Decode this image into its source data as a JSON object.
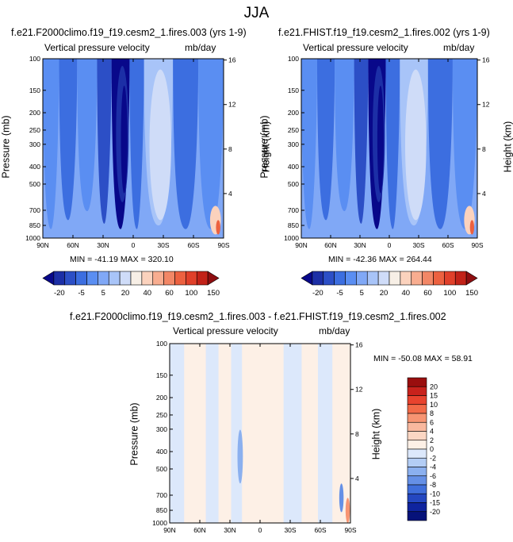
{
  "figure_title": "JJA",
  "panels": [
    {
      "title": "f.e21.F2000climo.f19_f19.cesm2_1.fires.003 (yrs 1-9)",
      "variable": "Vertical pressure velocity",
      "units": "mb/day",
      "y_label": "Pressure (mb)",
      "y2_label": "Height (km)",
      "stats": "MIN = -41.19  MAX = 320.10"
    },
    {
      "title": "f.e21.FHIST.f19_f19.cesm2_1.fires.002 (yrs 1-9)",
      "variable": "Vertical pressure velocity",
      "units": "mb/day",
      "y_label": "Pressure (mb)",
      "y2_label": "Height (km)",
      "stats": "MIN = -42.36  MAX = 264.44"
    },
    {
      "title": "f.e21.F2000climo.f19_f19.cesm2_1.fires.003 - f.e21.FHIST.f19_f19.cesm2_1.fires.002",
      "variable": "Vertical pressure velocity",
      "units": "mb/day",
      "y_label": "Pressure (mb)",
      "y2_label": "Height (km)",
      "stats": "MIN = -50.08  MAX =  58.91"
    }
  ],
  "chart_data": [
    {
      "type": "heatmap",
      "title": "f.e21.F2000climo.f19_f19.cesm2_1.fires.003 (yrs 1-9)",
      "xlabel": "",
      "ylabel": "Pressure (mb)",
      "y2label": "Height (km)",
      "x_ticks": [
        "90N",
        "60N",
        "30N",
        "0",
        "30S",
        "60S",
        "90S"
      ],
      "y_ticks": [
        "100",
        "150",
        "200",
        "250",
        "300",
        "400",
        "500",
        "700",
        "850",
        "1000"
      ],
      "y2_ticks": [
        "16",
        "12",
        "8",
        "4"
      ],
      "min": -41.19,
      "max": 320.1
    },
    {
      "type": "heatmap",
      "title": "f.e21.FHIST.f19_f19.cesm2_1.fires.002 (yrs 1-9)",
      "xlabel": "",
      "ylabel": "Pressure (mb)",
      "y2label": "Height (km)",
      "x_ticks": [
        "90N",
        "60N",
        "30N",
        "0",
        "30S",
        "60S",
        "90S"
      ],
      "y_ticks": [
        "100",
        "150",
        "200",
        "250",
        "300",
        "400",
        "500",
        "700",
        "850",
        "1000"
      ],
      "y2_ticks": [
        "16",
        "12",
        "8",
        "4"
      ],
      "min": -42.36,
      "max": 264.44
    },
    {
      "type": "heatmap",
      "title": "f.e21.F2000climo.f19_f19.cesm2_1.fires.003 - f.e21.FHIST.f19_f19.cesm2_1.fires.002",
      "xlabel": "",
      "ylabel": "Pressure (mb)",
      "y2label": "Height (km)",
      "x_ticks": [
        "90N",
        "60N",
        "30N",
        "0",
        "30S",
        "60S",
        "90S"
      ],
      "y_ticks": [
        "100",
        "150",
        "200",
        "250",
        "300",
        "400",
        "500",
        "700",
        "850",
        "1000"
      ],
      "y2_ticks": [
        "16",
        "12",
        "8",
        "4"
      ],
      "min": -50.08,
      "max": 58.91
    }
  ],
  "colorbar_top": {
    "labels": [
      "-20",
      "-5",
      "5",
      "20",
      "40",
      "60",
      "100",
      "150"
    ],
    "colors": [
      "#08088a",
      "#1c2fa6",
      "#2c4fc6",
      "#3c6ee0",
      "#5a8ef2",
      "#80a8f6",
      "#a8c4f8",
      "#cfdcf8",
      "#f7efe6",
      "#fbd2bd",
      "#f8ad90",
      "#f28766",
      "#ec6140",
      "#e0402a",
      "#c22218",
      "#8e0e10"
    ]
  },
  "colorbar_diff": {
    "labels": [
      "20",
      "15",
      "10",
      "8",
      "6",
      "4",
      "2",
      "0",
      "-2",
      "-4",
      "-6",
      "-8",
      "-10",
      "-15",
      "-20"
    ],
    "colors": [
      "#9a0e0e",
      "#c8221c",
      "#e8432e",
      "#f26a48",
      "#f79472",
      "#f9b89e",
      "#fbd6c3",
      "#fdf0e6",
      "#dce8fb",
      "#b3cdf5",
      "#8bb0ef",
      "#6590e6",
      "#406fdb",
      "#2447c0",
      "#0f249e",
      "#06127a"
    ]
  }
}
